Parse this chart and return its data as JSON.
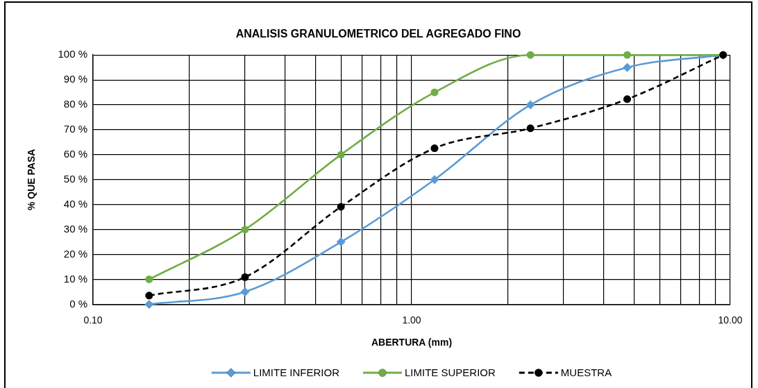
{
  "chart_data": {
    "type": "line",
    "title": "ANALISIS GRANULOMETRICO DEL AGREGADO FINO",
    "xlabel": "ABERTURA (mm)",
    "ylabel": "% QUE PASA",
    "x": [
      0.15,
      0.3,
      0.6,
      1.18,
      2.36,
      4.75,
      9.5
    ],
    "series": [
      {
        "name": "LIMITE INFERIOR",
        "color": "#5b9bd5",
        "marker": "diamond",
        "line_style": "solid",
        "values": [
          0,
          5,
          25,
          50,
          80,
          95,
          100
        ]
      },
      {
        "name": "LIMITE SUPERIOR",
        "color": "#70ad47",
        "marker": "circle",
        "line_style": "solid",
        "values": [
          10,
          30,
          60,
          85,
          100,
          100,
          100
        ]
      },
      {
        "name": "MUESTRA",
        "color": "#000000",
        "marker": "circle",
        "line_style": "dashed",
        "values": [
          3.5,
          10.9,
          39.1,
          62.6,
          70.6,
          82.3,
          100
        ]
      }
    ],
    "log": "x",
    "xlim": [
      0.1,
      10
    ],
    "xticks": [
      {
        "value": 0.1,
        "label": "0.10"
      },
      {
        "value": 0.2,
        "label": null
      },
      {
        "value": 0.3,
        "label": null
      },
      {
        "value": 0.4,
        "label": null
      },
      {
        "value": 0.5,
        "label": null
      },
      {
        "value": 0.6,
        "label": null
      },
      {
        "value": 0.7,
        "label": null
      },
      {
        "value": 0.8,
        "label": null
      },
      {
        "value": 0.9,
        "label": null
      },
      {
        "value": 1,
        "label": "1.00"
      },
      {
        "value": 2,
        "label": null
      },
      {
        "value": 3,
        "label": null
      },
      {
        "value": 4,
        "label": null
      },
      {
        "value": 5,
        "label": null
      },
      {
        "value": 6,
        "label": null
      },
      {
        "value": 7,
        "label": null
      },
      {
        "value": 8,
        "label": null
      },
      {
        "value": 9,
        "label": null
      },
      {
        "value": 10,
        "label": "10.00"
      }
    ],
    "ylim": [
      0,
      100
    ],
    "yticks": [
      {
        "value": 0,
        "label": "0 %"
      },
      {
        "value": 10,
        "label": "10 %"
      },
      {
        "value": 20,
        "label": "20 %"
      },
      {
        "value": 30,
        "label": "30 %"
      },
      {
        "value": 40,
        "label": "40 %"
      },
      {
        "value": 50,
        "label": "50 %"
      },
      {
        "value": 60,
        "label": "60 %"
      },
      {
        "value": 70,
        "label": "70 %"
      },
      {
        "value": 80,
        "label": "80 %"
      },
      {
        "value": 90,
        "label": "90 %"
      },
      {
        "value": 100,
        "label": "100 %"
      }
    ],
    "grid": true,
    "legend": "bottom"
  }
}
